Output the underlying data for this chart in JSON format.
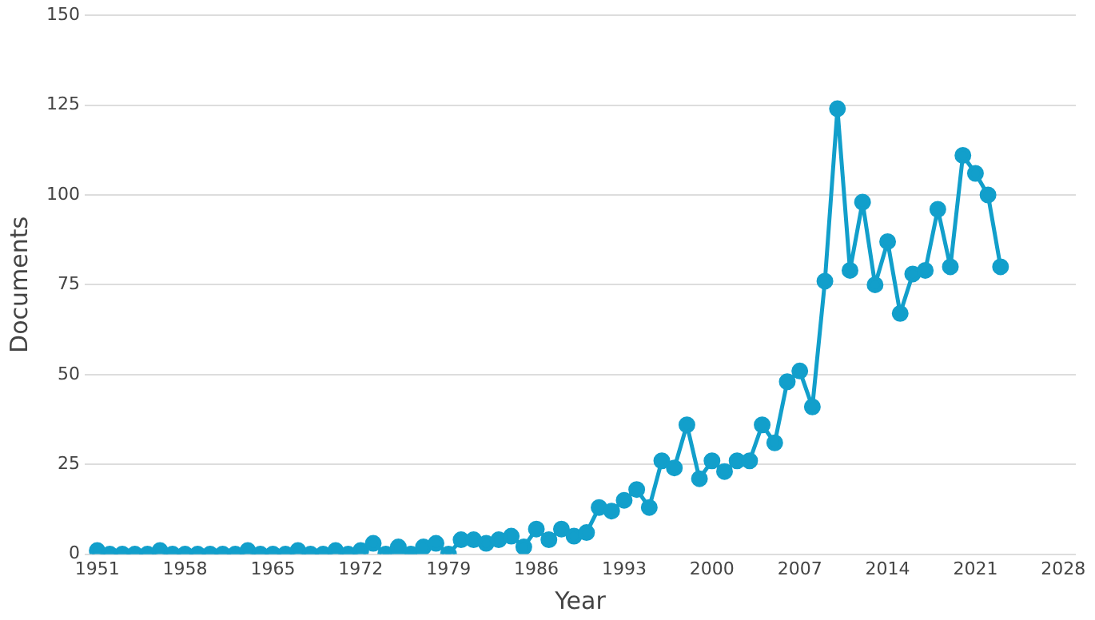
{
  "chart_data": {
    "type": "line",
    "xlabel": "Year",
    "ylabel": "Documents",
    "x": [
      1951,
      1952,
      1953,
      1954,
      1955,
      1956,
      1957,
      1958,
      1959,
      1960,
      1961,
      1962,
      1963,
      1964,
      1965,
      1966,
      1967,
      1968,
      1969,
      1970,
      1971,
      1972,
      1973,
      1974,
      1975,
      1976,
      1977,
      1978,
      1979,
      1980,
      1981,
      1982,
      1983,
      1984,
      1985,
      1986,
      1987,
      1988,
      1989,
      1990,
      1991,
      1992,
      1993,
      1994,
      1995,
      1996,
      1997,
      1998,
      1999,
      2000,
      2001,
      2002,
      2003,
      2004,
      2005,
      2006,
      2007,
      2008,
      2009,
      2010,
      2011,
      2012,
      2013,
      2014,
      2015,
      2016,
      2017,
      2018,
      2019,
      2020,
      2021,
      2022,
      2023
    ],
    "series": [
      {
        "color": "#129fcb",
        "values": [
          1,
          0,
          0,
          0,
          0,
          1,
          0,
          0,
          0,
          0,
          0,
          0,
          1,
          0,
          0,
          0,
          1,
          0,
          0,
          1,
          0,
          1,
          3,
          0,
          2,
          0,
          2,
          3,
          0,
          4,
          4,
          3,
          4,
          5,
          2,
          7,
          4,
          7,
          5,
          6,
          13,
          12,
          15,
          18,
          13,
          26,
          24,
          36,
          21,
          26,
          23,
          26,
          26,
          36,
          31,
          48,
          51,
          41,
          76,
          124,
          79,
          98,
          75,
          87,
          67,
          78,
          79,
          96,
          80,
          111,
          106,
          100,
          80
        ]
      }
    ],
    "xlim": [
      1950,
      2029
    ],
    "xticks": [
      1951,
      1958,
      1965,
      1972,
      1979,
      1986,
      1993,
      2000,
      2007,
      2014,
      2021,
      2028
    ],
    "ylim": [
      0,
      150
    ],
    "yticks": [
      0,
      25,
      50,
      75,
      100,
      125,
      150
    ],
    "grid": "y",
    "legend": false,
    "marker": "circle",
    "line_style": "solid"
  }
}
